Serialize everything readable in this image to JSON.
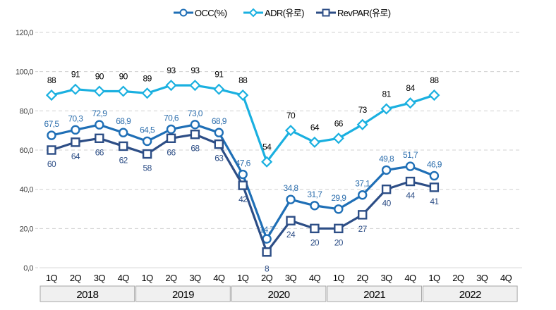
{
  "chart_data": {
    "type": "line",
    "title": "",
    "xlabel": "",
    "ylabel": "",
    "ylim": [
      0,
      120
    ],
    "yticks": [
      "0,0",
      "20,0",
      "40,0",
      "60,0",
      "80,0",
      "100,0",
      "120,0"
    ],
    "ytick_values": [
      0,
      20,
      40,
      60,
      80,
      100,
      120
    ],
    "grid": true,
    "legend_position": "top",
    "categories": [
      "1Q",
      "2Q",
      "3Q",
      "4Q",
      "1Q",
      "2Q",
      "3Q",
      "4Q",
      "1Q",
      "2Q",
      "3Q",
      "4Q",
      "1Q",
      "2Q",
      "3Q",
      "4Q",
      "1Q",
      "2Q",
      "3Q",
      "4Q"
    ],
    "years": [
      "2018",
      "2019",
      "2020",
      "2021",
      "2022"
    ],
    "series": [
      {
        "name": "OCC(%)",
        "marker": "circle",
        "color": "#1f6fb6",
        "label_color": "#2e6fad",
        "values": [
          67.5,
          70.3,
          72.9,
          68.9,
          64.5,
          70.6,
          73.0,
          68.9,
          47.6,
          14.7,
          34.8,
          31.7,
          29.9,
          37.1,
          49.8,
          51.7,
          46.9,
          null,
          null,
          null
        ],
        "labels": [
          "67,5",
          "70,3",
          "72,9",
          "68,9",
          "64,5",
          "70,6",
          "73,0",
          "68,9",
          "47,6",
          "14,7",
          "34,8",
          "31,7",
          "29,9",
          "37,1",
          "49,8",
          "51,7",
          "46,9",
          null,
          null,
          null
        ]
      },
      {
        "name": "ADR(유로)",
        "marker": "diamond",
        "color": "#1ab0e0",
        "label_color": "#000000",
        "values": [
          88,
          91,
          90,
          90,
          89,
          93,
          93,
          91,
          88,
          54,
          70,
          64,
          66,
          73,
          81,
          84,
          88,
          null,
          null,
          null
        ],
        "labels": [
          "88",
          "91",
          "90",
          "90",
          "89",
          "93",
          "93",
          "91",
          "88",
          "54",
          "70",
          "64",
          "66",
          "73",
          "81",
          "84",
          "88",
          null,
          null,
          null
        ]
      },
      {
        "name": "RevPAR(유로)",
        "marker": "square",
        "color": "#2d4e86",
        "label_color": "#2d4e86",
        "values": [
          60,
          64,
          66,
          62,
          58,
          66,
          68,
          63,
          42,
          8,
          24,
          20,
          20,
          27,
          40,
          44,
          41,
          null,
          null,
          null
        ],
        "labels": [
          "60",
          "64",
          "66",
          "62",
          "58",
          "66",
          "68",
          "63",
          "42",
          "8",
          "24",
          "20",
          "20",
          "27",
          "40",
          "44",
          "41",
          null,
          null,
          null
        ]
      }
    ]
  }
}
